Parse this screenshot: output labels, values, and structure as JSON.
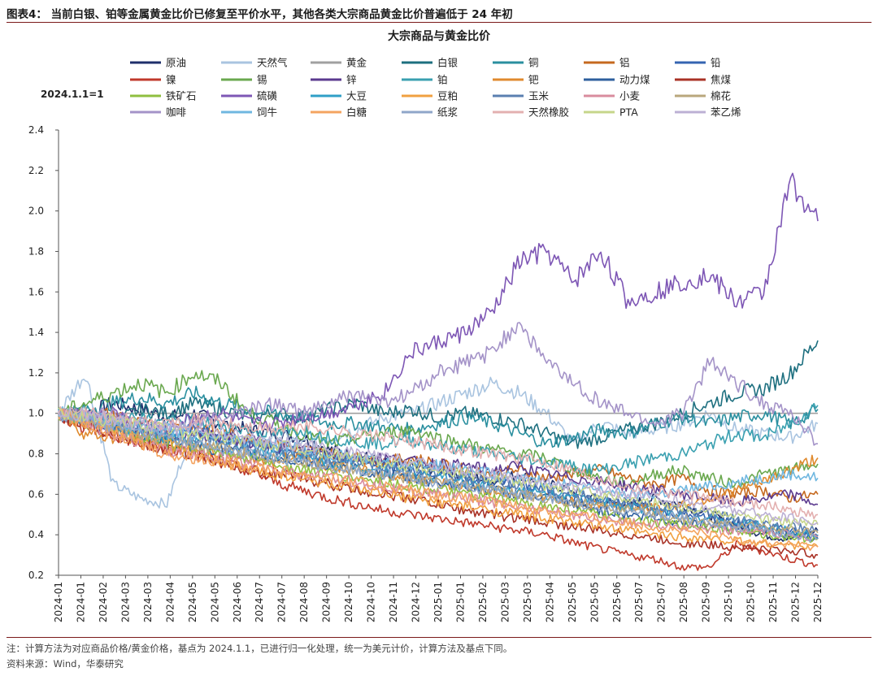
{
  "figure": {
    "title": "图表4：  当前白银、铂等金属黄金比价已修复至平价水平，其他各类大宗商品黄金比价普遍低于 24 年初",
    "note": "注：计算方法为对应商品价格/黄金价格，基点为 2024.1.1，已进行归一化处理，统一为美元计价，计算方法及基点下同。",
    "source": "资料来源：Wind，华泰研究"
  },
  "chart_data": {
    "type": "line",
    "title": "大宗商品与黄金比价",
    "base_label": "2024.1.1=1",
    "xlabel": "",
    "ylabel": "",
    "ylim": [
      0.2,
      2.4
    ],
    "yticks": [
      0.2,
      0.4,
      0.6,
      0.8,
      1.0,
      1.2,
      1.4,
      1.6,
      1.8,
      2.0,
      2.2,
      2.4
    ],
    "ytick_labels": [
      "0.2",
      "0.4",
      "0.6",
      "0.8",
      "1.0",
      "1.2",
      "1.4",
      "1.6",
      "1.8",
      "2.0",
      "2.2",
      "2.4"
    ],
    "x_range": [
      0,
      24
    ],
    "xtick_labels": [
      "2024-01",
      "2024-01",
      "2024-02",
      "2024-03",
      "2024-03",
      "2024-04",
      "2024-05",
      "2024-05",
      "2024-06",
      "2024-07",
      "2024-07",
      "2024-08",
      "2024-09",
      "2024-10",
      "2024-10",
      "2024-11",
      "2024-12",
      "2025-01",
      "2025-01",
      "2025-02",
      "2025-03",
      "2025-03",
      "2025-04",
      "2025-05",
      "2025-05",
      "2025-06",
      "2025-07",
      "2025-07",
      "2025-08",
      "2025-09",
      "2025-10",
      "2025-10",
      "2025-11",
      "2025-12",
      "2025-12"
    ],
    "series": [
      {
        "name": "原油",
        "color": "#1f2f6b",
        "values": [
          1.0,
          1.0,
          1.05,
          1.02,
          0.98,
          1.0,
          0.95,
          0.92,
          0.9,
          0.88,
          0.82,
          0.8,
          0.75,
          0.74,
          0.72,
          0.7,
          0.66,
          0.7,
          0.65,
          0.62,
          0.56,
          0.55,
          0.58,
          0.55,
          0.5,
          0.45,
          0.4,
          0.38,
          0.42
        ]
      },
      {
        "name": "天然气",
        "color": "#a9c4e0",
        "values": [
          1.0,
          1.2,
          0.65,
          0.58,
          0.55,
          0.95,
          0.88,
          0.82,
          0.9,
          0.85,
          0.88,
          0.92,
          0.98,
          1.0,
          1.05,
          1.1,
          1.15,
          1.1,
          1.0,
          0.85,
          0.95,
          0.9,
          0.92,
          0.95,
          1.0,
          0.92,
          0.9,
          0.88,
          0.95
        ]
      },
      {
        "name": "黄金",
        "color": "#a0a0a0",
        "values": [
          1.0,
          1.0,
          1.0,
          1.0,
          1.0,
          1.0,
          1.0,
          1.0,
          1.0,
          1.0,
          1.0,
          1.0,
          1.0,
          1.0,
          1.0,
          1.0,
          1.0,
          1.0,
          1.0,
          1.0,
          1.0,
          1.0,
          1.0,
          1.0,
          1.0,
          1.0,
          1.0,
          1.0,
          1.0
        ]
      },
      {
        "name": "白银",
        "color": "#1d6f7f",
        "values": [
          1.0,
          0.98,
          0.95,
          1.02,
          1.0,
          1.05,
          1.02,
          0.98,
          1.0,
          0.98,
          1.02,
          1.05,
          1.0,
          1.02,
          0.98,
          1.0,
          0.98,
          0.95,
          0.9,
          0.85,
          0.88,
          0.92,
          0.95,
          1.0,
          1.05,
          1.1,
          1.12,
          1.2,
          1.36
        ]
      },
      {
        "name": "铜",
        "color": "#2a8f9f",
        "values": [
          1.0,
          1.02,
          1.05,
          1.08,
          1.05,
          1.1,
          1.05,
          1.02,
          1.0,
          0.98,
          0.95,
          0.95,
          0.93,
          0.92,
          0.95,
          0.98,
          0.95,
          0.9,
          0.85,
          0.88,
          0.92,
          0.9,
          0.95,
          0.98,
          0.95,
          0.98,
          1.0,
          0.95,
          1.02
        ]
      },
      {
        "name": "铝",
        "color": "#c5691f",
        "values": [
          1.0,
          0.98,
          1.0,
          0.95,
          0.92,
          0.95,
          0.9,
          0.88,
          0.85,
          0.82,
          0.8,
          0.78,
          0.76,
          0.78,
          0.75,
          0.72,
          0.7,
          0.72,
          0.68,
          0.7,
          0.72,
          0.68,
          0.65,
          0.68,
          0.62,
          0.6,
          0.62,
          0.58,
          0.6
        ]
      },
      {
        "name": "铅",
        "color": "#3564b1",
        "values": [
          1.0,
          0.98,
          0.95,
          0.92,
          0.9,
          0.92,
          0.88,
          0.85,
          0.82,
          0.8,
          0.78,
          0.76,
          0.74,
          0.72,
          0.7,
          0.68,
          0.66,
          0.65,
          0.62,
          0.58,
          0.56,
          0.55,
          0.52,
          0.5,
          0.48,
          0.46,
          0.44,
          0.42,
          0.4
        ]
      },
      {
        "name": "镍",
        "color": "#c0392b",
        "values": [
          1.0,
          0.92,
          0.9,
          0.85,
          0.82,
          0.8,
          0.76,
          0.72,
          0.66,
          0.62,
          0.58,
          0.55,
          0.52,
          0.5,
          0.48,
          0.46,
          0.44,
          0.42,
          0.4,
          0.36,
          0.33,
          0.3,
          0.28,
          0.24,
          0.24,
          0.35,
          0.32,
          0.28,
          0.25
        ]
      },
      {
        "name": "锡",
        "color": "#6aa84f",
        "values": [
          1.0,
          1.05,
          1.1,
          1.15,
          1.1,
          1.2,
          1.15,
          1.0,
          0.95,
          0.9,
          0.85,
          0.88,
          0.9,
          0.92,
          0.88,
          0.85,
          0.82,
          0.8,
          0.78,
          0.72,
          0.68,
          0.65,
          0.7,
          0.72,
          0.68,
          0.65,
          0.7,
          0.72,
          0.75
        ]
      },
      {
        "name": "锌",
        "color": "#5b3a8f",
        "values": [
          1.0,
          0.98,
          0.95,
          0.9,
          0.88,
          0.9,
          0.88,
          0.86,
          0.84,
          0.82,
          0.8,
          0.78,
          0.78,
          0.76,
          0.75,
          0.74,
          0.72,
          0.74,
          0.7,
          0.68,
          0.66,
          0.64,
          0.62,
          0.6,
          0.58,
          0.56,
          0.58,
          0.6,
          0.55
        ]
      },
      {
        "name": "铂",
        "color": "#3aa0b0",
        "values": [
          1.0,
          0.98,
          0.96,
          0.98,
          0.95,
          0.97,
          0.94,
          0.92,
          0.9,
          0.92,
          0.88,
          0.86,
          0.85,
          0.87,
          0.84,
          0.82,
          0.8,
          0.78,
          0.76,
          0.74,
          0.72,
          0.75,
          0.78,
          0.8,
          0.85,
          0.9,
          0.88,
          0.95,
          1.04
        ]
      },
      {
        "name": "钯",
        "color": "#e08a2e",
        "values": [
          1.0,
          0.9,
          0.88,
          0.85,
          0.86,
          0.84,
          0.8,
          0.78,
          0.76,
          0.8,
          0.74,
          0.72,
          0.7,
          0.68,
          0.66,
          0.64,
          0.62,
          0.6,
          0.58,
          0.56,
          0.55,
          0.54,
          0.53,
          0.55,
          0.58,
          0.62,
          0.66,
          0.72,
          0.78
        ]
      },
      {
        "name": "动力煤",
        "color": "#2e5f9e",
        "values": [
          1.0,
          0.96,
          0.92,
          0.88,
          0.86,
          0.84,
          0.82,
          0.8,
          0.78,
          0.76,
          0.74,
          0.72,
          0.7,
          0.68,
          0.66,
          0.64,
          0.62,
          0.6,
          0.58,
          0.55,
          0.52,
          0.5,
          0.48,
          0.46,
          0.45,
          0.44,
          0.42,
          0.4,
          0.38
        ]
      },
      {
        "name": "焦煤",
        "color": "#a93226",
        "values": [
          1.0,
          0.95,
          0.9,
          0.86,
          0.82,
          0.8,
          0.76,
          0.72,
          0.7,
          0.68,
          0.65,
          0.62,
          0.6,
          0.58,
          0.55,
          0.52,
          0.5,
          0.48,
          0.46,
          0.44,
          0.42,
          0.4,
          0.38,
          0.36,
          0.35,
          0.34,
          0.33,
          0.32,
          0.3
        ]
      },
      {
        "name": "铁矿石",
        "color": "#8fbf3f",
        "values": [
          1.0,
          0.96,
          0.92,
          0.88,
          0.85,
          0.82,
          0.8,
          0.78,
          0.75,
          0.72,
          0.7,
          0.68,
          0.66,
          0.64,
          0.62,
          0.6,
          0.58,
          0.56,
          0.54,
          0.52,
          0.5,
          0.48,
          0.46,
          0.45,
          0.44,
          0.42,
          0.4,
          0.39,
          0.38
        ]
      },
      {
        "name": "硫磺",
        "color": "#7e57b5",
        "values": [
          1.0,
          0.98,
          1.0,
          0.95,
          0.92,
          0.98,
          1.0,
          0.95,
          0.95,
          0.98,
          1.0,
          1.05,
          1.1,
          1.3,
          1.35,
          1.4,
          1.5,
          1.75,
          1.8,
          1.65,
          1.8,
          1.55,
          1.6,
          1.65,
          1.68,
          1.55,
          1.6,
          2.15,
          1.95
        ]
      },
      {
        "name": "大豆",
        "color": "#2f9fc7",
        "values": [
          1.0,
          0.97,
          0.94,
          0.9,
          0.88,
          0.86,
          0.84,
          0.82,
          0.8,
          0.78,
          0.76,
          0.74,
          0.72,
          0.7,
          0.68,
          0.66,
          0.64,
          0.62,
          0.6,
          0.58,
          0.56,
          0.54,
          0.52,
          0.5,
          0.48,
          0.46,
          0.44,
          0.42,
          0.4
        ]
      },
      {
        "name": "豆粕",
        "color": "#f0a040",
        "values": [
          1.0,
          0.96,
          0.92,
          0.88,
          0.84,
          0.8,
          0.76,
          0.72,
          0.7,
          0.68,
          0.65,
          0.62,
          0.6,
          0.58,
          0.56,
          0.54,
          0.52,
          0.5,
          0.48,
          0.46,
          0.44,
          0.42,
          0.4,
          0.39,
          0.38,
          0.37,
          0.36,
          0.35,
          0.34
        ]
      },
      {
        "name": "玉米",
        "color": "#5a7fb0",
        "values": [
          1.0,
          0.98,
          0.95,
          0.92,
          0.9,
          0.88,
          0.86,
          0.84,
          0.82,
          0.8,
          0.78,
          0.76,
          0.74,
          0.72,
          0.7,
          0.68,
          0.66,
          0.64,
          0.62,
          0.6,
          0.58,
          0.56,
          0.54,
          0.52,
          0.5,
          0.48,
          0.46,
          0.44,
          0.42
        ]
      },
      {
        "name": "小麦",
        "color": "#d98c9e",
        "values": [
          1.0,
          0.96,
          0.9,
          0.86,
          0.82,
          0.8,
          0.78,
          0.75,
          0.72,
          0.7,
          0.68,
          0.66,
          0.64,
          0.62,
          0.6,
          0.58,
          0.56,
          0.54,
          0.52,
          0.5,
          0.48,
          0.46,
          0.45,
          0.44,
          0.43,
          0.42,
          0.41,
          0.4,
          0.39
        ]
      },
      {
        "name": "棉花",
        "color": "#b9a77c",
        "values": [
          1.0,
          0.97,
          0.94,
          0.9,
          0.87,
          0.84,
          0.82,
          0.8,
          0.78,
          0.76,
          0.74,
          0.72,
          0.7,
          0.68,
          0.66,
          0.64,
          0.62,
          0.6,
          0.58,
          0.56,
          0.54,
          0.52,
          0.5,
          0.48,
          0.46,
          0.45,
          0.44,
          0.42,
          0.41
        ]
      },
      {
        "name": "咖啡",
        "color": "#a493c8",
        "values": [
          1.0,
          0.98,
          1.0,
          0.95,
          0.92,
          0.95,
          0.98,
          1.02,
          1.05,
          1.0,
          1.05,
          1.1,
          1.05,
          1.1,
          1.2,
          1.25,
          1.3,
          1.45,
          1.25,
          1.15,
          1.05,
          1.0,
          0.95,
          1.0,
          1.25,
          1.15,
          1.05,
          1.0,
          0.85
        ]
      },
      {
        "name": "饲牛",
        "color": "#6fb7e0",
        "values": [
          1.0,
          0.98,
          0.96,
          0.94,
          0.92,
          0.9,
          0.88,
          0.86,
          0.84,
          0.82,
          0.8,
          0.78,
          0.76,
          0.75,
          0.74,
          0.72,
          0.7,
          0.68,
          0.66,
          0.64,
          0.62,
          0.6,
          0.6,
          0.62,
          0.64,
          0.66,
          0.68,
          0.7,
          0.68
        ]
      },
      {
        "name": "白糖",
        "color": "#f4a460",
        "values": [
          1.0,
          0.95,
          0.9,
          0.85,
          0.8,
          0.78,
          0.76,
          0.74,
          0.72,
          0.7,
          0.68,
          0.66,
          0.64,
          0.62,
          0.6,
          0.58,
          0.56,
          0.54,
          0.52,
          0.5,
          0.48,
          0.46,
          0.44,
          0.42,
          0.4,
          0.38,
          0.36,
          0.35,
          0.34
        ]
      },
      {
        "name": "纸浆",
        "color": "#8fa6c9",
        "values": [
          1.0,
          0.97,
          0.94,
          0.91,
          0.88,
          0.85,
          0.82,
          0.8,
          0.78,
          0.76,
          0.74,
          0.72,
          0.7,
          0.68,
          0.66,
          0.64,
          0.62,
          0.6,
          0.58,
          0.56,
          0.54,
          0.52,
          0.5,
          0.48,
          0.46,
          0.44,
          0.42,
          0.4,
          0.38
        ]
      },
      {
        "name": "天然橡胶",
        "color": "#e3b0b0",
        "values": [
          1.0,
          1.0,
          0.98,
          0.96,
          0.95,
          0.97,
          0.95,
          0.93,
          0.92,
          0.94,
          0.92,
          0.9,
          0.88,
          0.86,
          0.84,
          0.82,
          0.8,
          0.78,
          0.76,
          0.72,
          0.68,
          0.64,
          0.62,
          0.6,
          0.58,
          0.56,
          0.55,
          0.52,
          0.5
        ]
      },
      {
        "name": "PTA",
        "color": "#c6d68a",
        "values": [
          1.0,
          0.98,
          0.96,
          0.94,
          0.92,
          0.9,
          0.88,
          0.86,
          0.84,
          0.82,
          0.8,
          0.78,
          0.76,
          0.74,
          0.72,
          0.7,
          0.68,
          0.66,
          0.64,
          0.62,
          0.6,
          0.58,
          0.56,
          0.54,
          0.52,
          0.5,
          0.48,
          0.46,
          0.45
        ]
      },
      {
        "name": "苯乙烯",
        "color": "#bcb0d4",
        "values": [
          1.0,
          0.99,
          0.97,
          0.95,
          0.93,
          0.92,
          0.9,
          0.88,
          0.86,
          0.84,
          0.82,
          0.8,
          0.78,
          0.76,
          0.74,
          0.72,
          0.7,
          0.68,
          0.66,
          0.64,
          0.62,
          0.6,
          0.58,
          0.56,
          0.54,
          0.52,
          0.5,
          0.48,
          0.46
        ]
      }
    ]
  }
}
